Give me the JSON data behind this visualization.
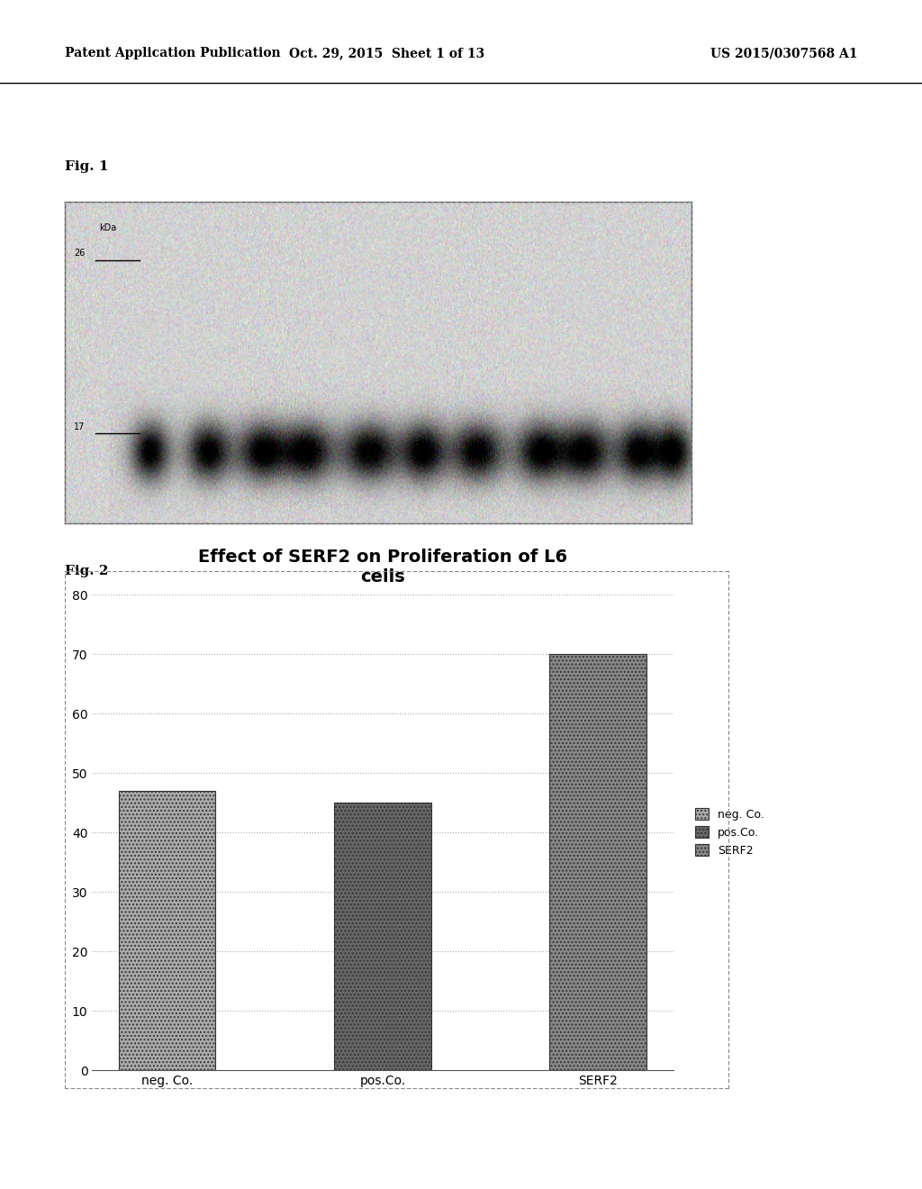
{
  "header_left": "Patent Application Publication",
  "header_center": "Oct. 29, 2015  Sheet 1 of 13",
  "header_right": "US 2015/0307568 A1",
  "fig1_label": "Fig. 1",
  "fig2_label": "Fig. 2",
  "fig1_kda_label": "kDa",
  "fig1_marker_26": "26",
  "fig1_marker_17": "17",
  "bar_categories": [
    "neg. Co.",
    "pos.Co.",
    "SERF2"
  ],
  "bar_values": [
    47,
    45,
    70
  ],
  "bar_colors": [
    "#aaaaaa",
    "#666666",
    "#888888"
  ],
  "chart_title": "Effect of SERF2 on Proliferation of L6\ncells",
  "legend_labels": [
    "neg. Co.",
    "pos.Co.",
    "SERF2"
  ],
  "legend_colors": [
    "#aaaaaa",
    "#666666",
    "#888888"
  ],
  "ylim": [
    0,
    80
  ],
  "yticks": [
    0,
    10,
    20,
    30,
    40,
    50,
    60,
    70,
    80
  ],
  "background_color": "#ffffff",
  "chart_bg": "#ffffff",
  "grid_color": "#aaaaaa",
  "border_color": "#888888",
  "title_fontsize": 14,
  "tick_fontsize": 10,
  "label_fontsize": 10,
  "header_fontsize": 10
}
